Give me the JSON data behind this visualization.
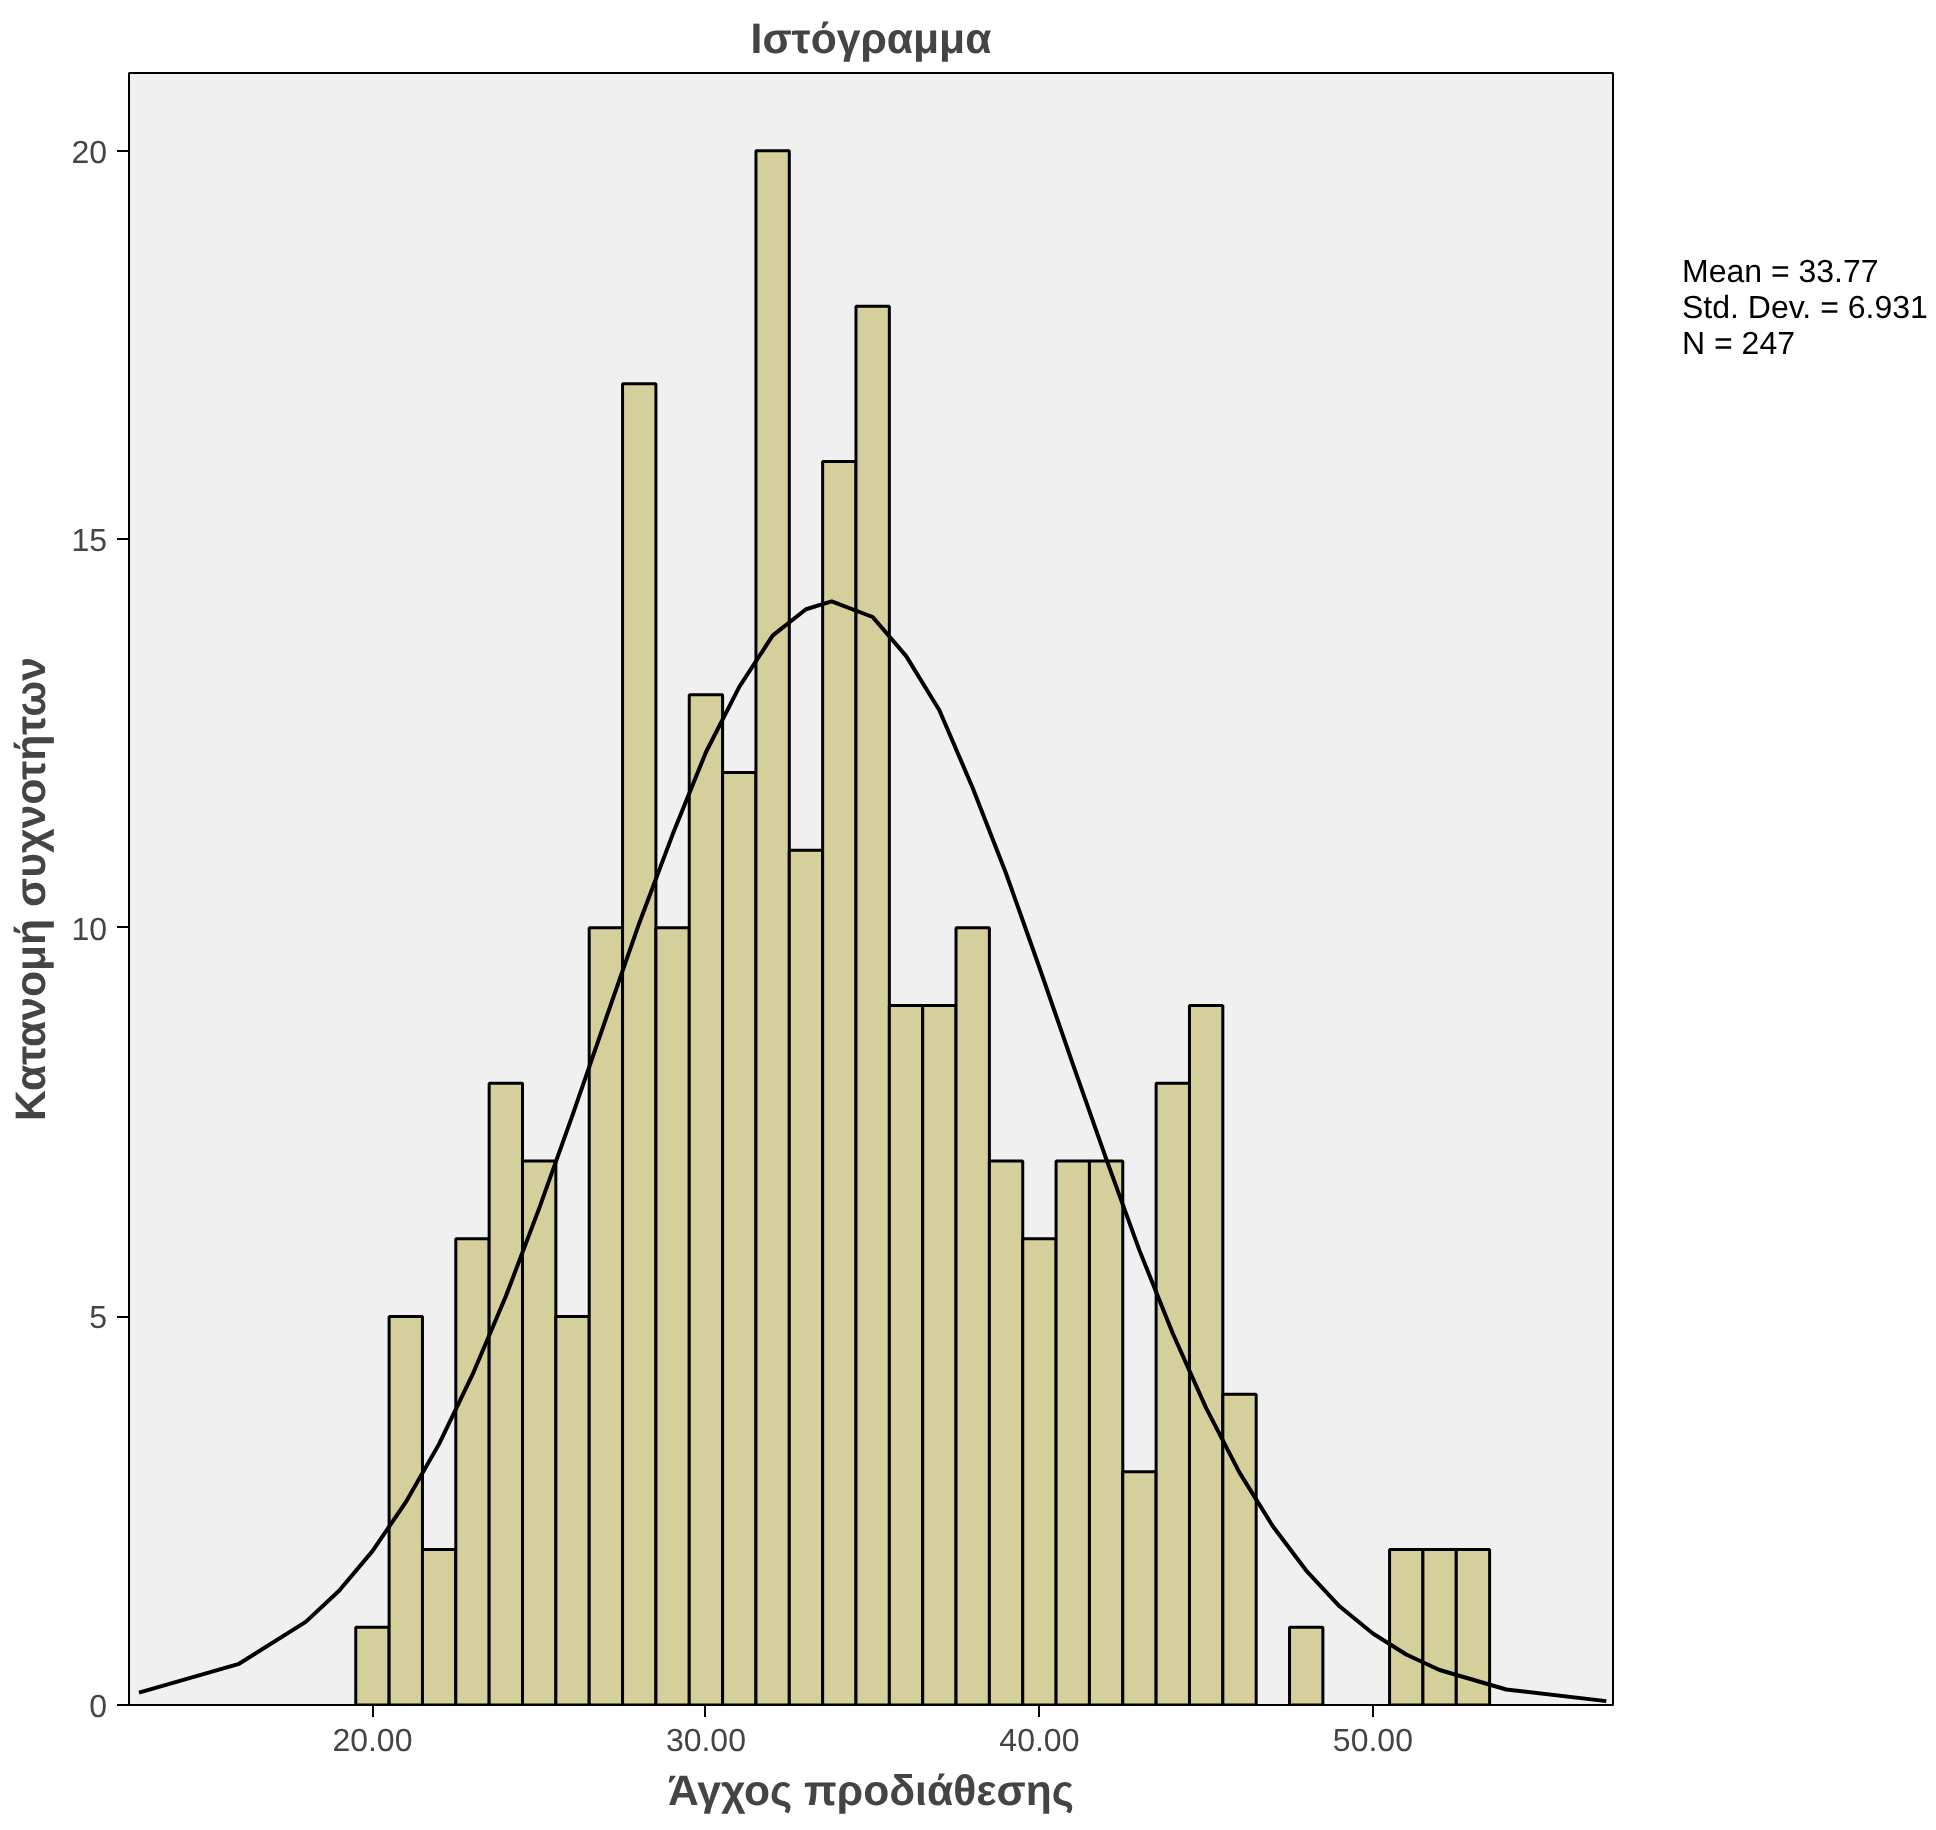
{
  "chart_data": {
    "type": "histogram",
    "title": "Ιστόγραμμα",
    "xlabel": "Άγχος προδιάθεσης",
    "ylabel": "Κατανομή συχνοτήτων",
    "bins": [
      19.5,
      20.5,
      21.5,
      22.5,
      23.5,
      24.5,
      25.5,
      26.5,
      27.5,
      28.5,
      29.5,
      30.5,
      31.5,
      32.5,
      33.5,
      34.5,
      35.5,
      36.5,
      37.5,
      38.5,
      39.5,
      40.5,
      41.5,
      42.5,
      43.5,
      44.5,
      45.5,
      46.5,
      47.5,
      48.5,
      49.5,
      50.5,
      51.5,
      52.5,
      53.5
    ],
    "values": [
      1,
      5,
      2,
      6,
      8,
      7,
      5,
      10,
      17,
      10,
      13,
      12,
      20,
      11,
      16,
      18,
      9,
      9,
      10,
      7,
      6,
      7,
      7,
      3,
      8,
      9,
      4,
      0,
      1,
      0,
      0,
      2,
      2,
      2
    ],
    "color": "#d4cf9b",
    "series": [
      {
        "type": "line",
        "color": "#000000",
        "x": [
          13,
          16,
          18,
          19,
          20,
          21,
          22,
          23,
          24,
          25,
          26,
          27,
          28,
          29,
          30,
          31,
          32,
          33,
          33.77,
          35,
          36,
          37,
          38,
          39,
          40,
          41,
          42,
          43,
          44,
          45,
          46,
          47,
          48,
          49,
          50,
          51,
          52,
          54,
          57
        ],
        "values": [
          0.16,
          0.53,
          1.07,
          1.47,
          1.98,
          2.61,
          3.36,
          4.25,
          5.26,
          6.39,
          7.59,
          8.83,
          10.06,
          11.2,
          12.26,
          13.1,
          13.76,
          14.1,
          14.2,
          14.0,
          13.5,
          12.8,
          11.8,
          10.7,
          9.49,
          8.25,
          7.03,
          5.85,
          4.78,
          3.82,
          2.99,
          2.3,
          1.73,
          1.27,
          0.92,
          0.65,
          0.45,
          0.2,
          0.05
        ]
      }
    ],
    "xlim": [
      12.7,
      57.2
    ],
    "ylim": [
      0,
      21
    ],
    "xticks": [
      {
        "value": 20,
        "label": "20.00"
      },
      {
        "value": 30,
        "label": "30.00"
      },
      {
        "value": 40,
        "label": "40.00"
      },
      {
        "value": 50,
        "label": "50.00"
      }
    ],
    "yticks": [
      0,
      5,
      10,
      15,
      20
    ],
    "grid": false,
    "annotations": [
      "Mean = 33.77",
      "Std. Dev. = 6.931",
      "N = 247"
    ]
  }
}
